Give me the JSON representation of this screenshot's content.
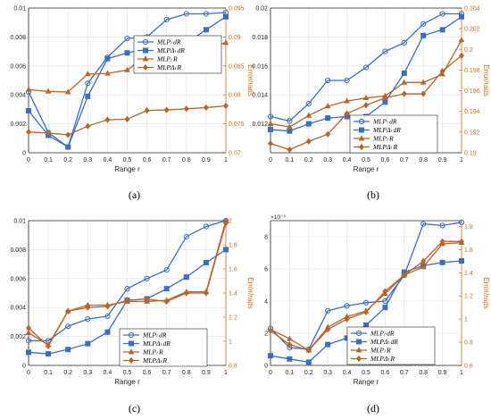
{
  "chart_data": [
    {
      "type": "line",
      "caption": "(a)",
      "xlabel": "Range r",
      "ylabel": "",
      "ylabel_right": "Error/rads",
      "x": [
        "0",
        "0.1",
        "0.2",
        "0.3",
        "0.4",
        "0.5",
        "0.6",
        "0.7",
        "0.8",
        "0.9",
        "1"
      ],
      "ylim": [
        0,
        0.01
      ],
      "yticks": [
        "0",
        "0.002",
        "0.004",
        "0.006",
        "0.008",
        "0.01"
      ],
      "ylim_right": [
        0.07,
        0.095
      ],
      "yticks_right": [
        "0.07",
        "0.075",
        "0.08",
        "0.085",
        "0.09",
        "0.095"
      ],
      "grid": true,
      "legend_position": "right",
      "series": [
        {
          "name": "MLPₗ dR",
          "axis": "left",
          "color": "#3a6fc0",
          "marker": "circle",
          "values": [
            0.0042,
            0.0014,
            0.0004,
            0.0048,
            0.0066,
            0.0079,
            0.008,
            0.0092,
            0.0096,
            0.0096,
            0.0097
          ]
        },
        {
          "name": "MLPΔₗ dR",
          "axis": "left",
          "color": "#3a6fc0",
          "marker": "square",
          "values": [
            0.0029,
            0.0012,
            0.0004,
            0.0039,
            0.0065,
            0.0069,
            0.0072,
            0.0074,
            0.0076,
            0.0085,
            0.0094
          ]
        },
        {
          "name": "MLPₗ R",
          "axis": "right",
          "color": "#b8642a",
          "marker": "triangle",
          "values": [
            0.0809,
            0.0806,
            0.0805,
            0.0836,
            0.0837,
            0.0843,
            0.0868,
            0.0875,
            0.0876,
            0.0882,
            0.089
          ]
        },
        {
          "name": "MLPΔₗ R",
          "axis": "right",
          "color": "#b8642a",
          "marker": "diamond",
          "values": [
            0.0736,
            0.0734,
            0.0731,
            0.0746,
            0.0757,
            0.0758,
            0.0773,
            0.0774,
            0.0776,
            0.0778,
            0.0781
          ]
        }
      ]
    },
    {
      "type": "line",
      "caption": "(b)",
      "xlabel": "Range r",
      "ylabel": "",
      "ylabel_right": "Error/rads",
      "x": [
        "0",
        "0.1",
        "0.2",
        "0.3",
        "0.4",
        "0.5",
        "0.6",
        "0.7",
        "0.8",
        "0.9",
        "1"
      ],
      "ylim": [
        0.01,
        0.02
      ],
      "yticks": [
        "0.012",
        "0.014",
        "0.016",
        "0.018",
        "0.02"
      ],
      "ylim_right": [
        0.19,
        0.204
      ],
      "yticks_right": [
        "0.19",
        "0.192",
        "0.194",
        "0.196",
        "0.198",
        "0.2",
        "0.202",
        "0.204"
      ],
      "grid": true,
      "legend_position": "bottom-right",
      "series": [
        {
          "name": "MLPₗ dR",
          "axis": "left",
          "color": "#3a6fc0",
          "marker": "circle",
          "values": [
            0.0125,
            0.0122,
            0.0134,
            0.015,
            0.015,
            0.0159,
            0.017,
            0.0176,
            0.0189,
            0.0196,
            0.0196
          ]
        },
        {
          "name": "MLPΔₗ dR",
          "axis": "left",
          "color": "#3a6fc0",
          "marker": "square",
          "values": [
            0.0116,
            0.0115,
            0.012,
            0.0124,
            0.0125,
            0.0125,
            0.0135,
            0.0155,
            0.0181,
            0.0185,
            0.0194
          ]
        },
        {
          "name": "MLPₗ R",
          "axis": "right",
          "color": "#b8642a",
          "marker": "triangle",
          "values": [
            0.1928,
            0.1925,
            0.1936,
            0.1945,
            0.195,
            0.1953,
            0.1955,
            0.1968,
            0.1968,
            0.1976,
            0.2009
          ]
        },
        {
          "name": "MLPΔₗ R",
          "axis": "right",
          "color": "#b8642a",
          "marker": "diamond",
          "values": [
            0.1909,
            0.1903,
            0.1911,
            0.1918,
            0.1938,
            0.1946,
            0.1953,
            0.1957,
            0.1957,
            0.1979,
            0.1994
          ]
        }
      ]
    },
    {
      "type": "line",
      "caption": "(c)",
      "xlabel": "Range r",
      "ylabel": "",
      "ylabel_right": "Error/rads",
      "x": [
        "0",
        "0.1",
        "0.2",
        "0.3",
        "0.4",
        "0.5",
        "0.6",
        "0.7",
        "0.8",
        "0.9",
        "1"
      ],
      "ylim": [
        0,
        0.01
      ],
      "yticks": [
        "0",
        "0.002",
        "0.004",
        "0.006",
        "0.008",
        "0.01"
      ],
      "ylim_right": [
        0.8,
        2
      ],
      "yticks_right": [
        "0.8",
        "1",
        "1.2",
        "1.4",
        "1.6",
        "1.8",
        "2"
      ],
      "grid": true,
      "legend_position": "bottom-right",
      "series": [
        {
          "name": "MLPₗ dR",
          "axis": "left",
          "color": "#3a6fc0",
          "marker": "circle",
          "values": [
            0.0017,
            0.0017,
            0.0027,
            0.0032,
            0.0034,
            0.0053,
            0.006,
            0.0066,
            0.0089,
            0.0096,
            0.01
          ]
        },
        {
          "name": "MLPΔₗ dR",
          "axis": "left",
          "color": "#3a6fc0",
          "marker": "square",
          "values": [
            0.0009,
            0.0008,
            0.0011,
            0.0015,
            0.0023,
            0.0045,
            0.0046,
            0.0053,
            0.0061,
            0.0071,
            0.008
          ]
        },
        {
          "name": "MLPₗ R",
          "axis": "right",
          "color": "#b8642a",
          "marker": "triangle",
          "values": [
            1.07,
            0.97,
            1.25,
            1.3,
            1.3,
            1.33,
            1.33,
            1.34,
            1.41,
            1.41,
            2.0
          ]
        },
        {
          "name": "MLPΔₗ R",
          "axis": "right",
          "color": "#b8642a",
          "marker": "diamond",
          "values": [
            1.11,
            0.96,
            1.25,
            1.28,
            1.29,
            1.34,
            1.35,
            1.33,
            1.4,
            1.4,
            1.98
          ]
        }
      ]
    },
    {
      "type": "line",
      "caption": "(d)",
      "xlabel": "Range r",
      "ylabel": "",
      "ylabel_right": "Error/rads",
      "y_exponent": "×10⁻³",
      "x": [
        "0",
        "0.1",
        "0.2",
        "0.3",
        "0.4",
        "0.5",
        "0.6",
        "0.7",
        "0.8",
        "0.9",
        "1"
      ],
      "ylim": [
        0,
        9
      ],
      "yticks": [
        "0",
        "2",
        "4",
        "6",
        "8"
      ],
      "ylim_right": [
        0.6,
        1.85
      ],
      "yticks_right": [
        "0.6",
        "0.8",
        "1",
        "1.2",
        "1.4",
        "1.6",
        "1.8"
      ],
      "grid": true,
      "legend_position": "bottom-right",
      "series": [
        {
          "name": "MLPₗ dR",
          "axis": "left",
          "color": "#3a6fc0",
          "marker": "circle",
          "values": [
            2.3,
            1.1,
            1.0,
            3.4,
            3.7,
            3.9,
            4.0,
            5.6,
            8.8,
            8.7,
            8.9
          ]
        },
        {
          "name": "MLPΔₗ dR",
          "axis": "left",
          "color": "#3a6fc0",
          "marker": "square",
          "values": [
            0.6,
            0.4,
            0.2,
            1.3,
            1.7,
            2.5,
            3.6,
            5.8,
            6.2,
            6.4,
            6.5
          ]
        },
        {
          "name": "MLPₗ R",
          "axis": "right",
          "color": "#b8642a",
          "marker": "triangle",
          "values": [
            0.91,
            0.83,
            0.73,
            0.93,
            1.02,
            1.07,
            1.22,
            1.38,
            1.45,
            1.65,
            1.66
          ]
        },
        {
          "name": "MLPΔₗ R",
          "axis": "right",
          "color": "#b8642a",
          "marker": "diamond",
          "values": [
            0.9,
            0.78,
            0.73,
            0.91,
            1.0,
            1.06,
            1.24,
            1.38,
            1.5,
            1.67,
            1.67
          ]
        }
      ]
    }
  ]
}
